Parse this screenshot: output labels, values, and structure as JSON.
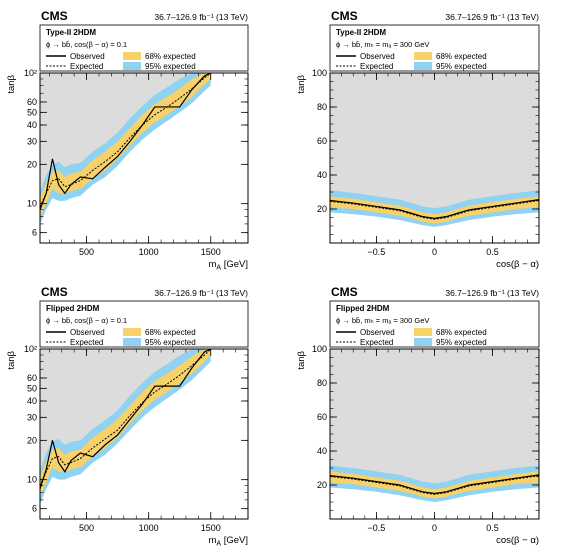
{
  "chart_data": [
    {
      "type": "area",
      "experiment": "CMS",
      "lumi": "36.7–126.9 fb⁻¹ (13 TeV)",
      "model": "Type-II 2HDM",
      "process": "ϕ → bb̄, cos(β − α) = 0.1",
      "xlabel": "mₐ [GeV]",
      "xlabel_main": "m",
      "xlabel_sub": "A",
      "xlabel_unit": " [GeV]",
      "ylabel": "tanβ",
      "xscale": "linear",
      "yscale": "log",
      "xlim": [
        125,
        1800
      ],
      "ylim": [
        5,
        100
      ],
      "xticks": [
        500,
        1000,
        1500
      ],
      "yticks": [
        6,
        10,
        20,
        30,
        40,
        50,
        60,
        100
      ],
      "ytick_labels": [
        "6",
        "10",
        "20",
        "30",
        "40",
        "50",
        "60",
        "10²"
      ],
      "legend": [
        "Observed",
        "Expected",
        "68% expected",
        "95% expected"
      ],
      "x": [
        125,
        175,
        225,
        275,
        325,
        375,
        450,
        550,
        650,
        750,
        850,
        950,
        1050,
        1150,
        1250,
        1350,
        1450,
        1500
      ],
      "observed": [
        9,
        12,
        22,
        14,
        12,
        14,
        16,
        15.5,
        19,
        23,
        30,
        40,
        55,
        55,
        55,
        75,
        95,
        100
      ],
      "expected": [
        9.5,
        12,
        15,
        15.5,
        13.5,
        14,
        15,
        18,
        21,
        25,
        32,
        40,
        48,
        55,
        64,
        76,
        92,
        100
      ],
      "band68": {
        "lo": [
          8,
          10,
          13,
          12,
          12,
          12.5,
          13,
          15.5,
          18,
          22,
          28,
          35,
          42,
          48,
          56,
          66,
          82,
          90
        ],
        "hi": [
          11,
          14.5,
          17.5,
          18,
          16,
          17,
          17.5,
          21.5,
          25,
          30,
          38,
          48,
          58,
          66,
          76,
          90,
          100,
          100
        ]
      },
      "band95": {
        "lo": [
          7,
          9,
          11,
          10.5,
          10.5,
          11,
          11.5,
          14,
          16,
          19.5,
          25,
          31,
          37,
          43,
          50,
          59,
          73,
          80
        ],
        "hi": [
          12.5,
          16.5,
          20,
          21,
          19,
          20,
          20.5,
          25,
          29,
          35,
          45,
          56,
          68,
          78,
          90,
          100,
          100,
          100
        ]
      },
      "xticks_nolabel": false,
      "excluded_fill": "#dcdcdc",
      "band68_color": "#f7d16a",
      "band95_color": "#8fd2f2"
    },
    {
      "type": "area",
      "experiment": "CMS",
      "lumi": "36.7–126.9 fb⁻¹ (13 TeV)",
      "model": "Type-II 2HDM",
      "process": "ϕ → bb̄, mₕ = mₐ = 300 GeV",
      "xlabel": "cos(β − α)",
      "ylabel": "tanβ",
      "xscale": "linear",
      "yscale": "linear",
      "xlim": [
        -0.9,
        0.9
      ],
      "ylim": [
        0,
        100
      ],
      "xticks": [
        -0.5,
        0,
        0.5
      ],
      "yticks": [
        20,
        40,
        60,
        80,
        100
      ],
      "legend": [
        "Observed",
        "Expected",
        "68% expected",
        "95% expected"
      ],
      "x": [
        -0.9,
        -0.7,
        -0.5,
        -0.3,
        -0.2,
        -0.1,
        0,
        0.1,
        0.2,
        0.3,
        0.5,
        0.7,
        0.9
      ],
      "observed": [
        25,
        23.5,
        21.5,
        19.5,
        17.5,
        15.5,
        14.5,
        15.5,
        17.5,
        19.5,
        21.5,
        23.5,
        25.5
      ],
      "expected": [
        24.5,
        23,
        21,
        19,
        17,
        15,
        14,
        15,
        17,
        19,
        21,
        23,
        25
      ],
      "band68": {
        "lo": [
          21,
          20,
          18,
          16,
          14.5,
          12.5,
          11.5,
          12.5,
          14.5,
          16,
          18,
          20,
          21
        ],
        "hi": [
          27.5,
          26,
          24,
          22,
          20,
          18,
          17,
          18,
          20,
          22,
          24,
          26,
          27.5
        ]
      },
      "band95": {
        "lo": [
          18,
          17,
          15.5,
          13.5,
          12,
          10.5,
          9.5,
          10.5,
          12,
          13.5,
          15.5,
          17,
          18
        ],
        "hi": [
          31,
          29.5,
          27.5,
          25.5,
          23.5,
          21.5,
          20.5,
          21.5,
          23.5,
          25.5,
          27.5,
          29.5,
          31
        ]
      },
      "excluded_fill": "#dcdcdc",
      "band68_color": "#f7d16a",
      "band95_color": "#8fd2f2"
    },
    {
      "type": "area",
      "experiment": "CMS",
      "lumi": "36.7–126.9 fb⁻¹ (13 TeV)",
      "model": "Flipped 2HDM",
      "process": "ϕ → bb̄, cos(β − α) = 0.1",
      "xlabel": "mₐ [GeV]",
      "xlabel_main": "m",
      "xlabel_sub": "A",
      "xlabel_unit": " [GeV]",
      "ylabel": "tanβ",
      "xscale": "linear",
      "yscale": "log",
      "xlim": [
        125,
        1800
      ],
      "ylim": [
        5,
        100
      ],
      "xticks": [
        500,
        1000,
        1500
      ],
      "yticks": [
        6,
        10,
        20,
        30,
        40,
        50,
        60,
        100
      ],
      "ytick_labels": [
        "6",
        "10",
        "20",
        "30",
        "40",
        "50",
        "60",
        "10²"
      ],
      "legend": [
        "Observed",
        "Expected",
        "68% expected",
        "95% expected"
      ],
      "x": [
        125,
        175,
        225,
        275,
        325,
        375,
        450,
        550,
        650,
        750,
        850,
        950,
        1050,
        1150,
        1250,
        1350,
        1450,
        1500
      ],
      "observed": [
        8.5,
        12,
        20,
        13.5,
        11.5,
        14,
        16,
        15,
        18.5,
        22,
        29,
        38,
        52,
        52,
        52,
        72,
        95,
        100
      ],
      "expected": [
        9,
        11.5,
        14.5,
        15,
        13,
        13.5,
        14.5,
        17.5,
        20.5,
        24,
        31,
        39,
        47,
        54,
        63,
        75,
        90,
        100
      ],
      "band68": {
        "lo": [
          7.5,
          9.5,
          12.5,
          11.5,
          11.5,
          12,
          12.5,
          15,
          17.5,
          21,
          27,
          34,
          41,
          47,
          55,
          65,
          80,
          90
        ],
        "hi": [
          10.5,
          14,
          17,
          17.5,
          15.5,
          16.5,
          17,
          21,
          24.5,
          29,
          37,
          47,
          57,
          65,
          75,
          88,
          100,
          100
        ]
      },
      "band95": {
        "lo": [
          6.5,
          8.5,
          10.5,
          10,
          10,
          10.5,
          11,
          13.5,
          15.5,
          19,
          24,
          30,
          36,
          42,
          49,
          58,
          72,
          80
        ],
        "hi": [
          12,
          16,
          19.5,
          20.5,
          18.5,
          19.5,
          20,
          24.5,
          28.5,
          34,
          44,
          55,
          67,
          77,
          89,
          100,
          100,
          100
        ]
      },
      "excluded_fill": "#dcdcdc",
      "band68_color": "#f7d16a",
      "band95_color": "#8fd2f2"
    },
    {
      "type": "area",
      "experiment": "CMS",
      "lumi": "36.7–126.9 fb⁻¹ (13 TeV)",
      "model": "Flipped 2HDM",
      "process": "ϕ → bb̄, mₕ = mₐ = 300 GeV",
      "xlabel": "cos(β − α)",
      "ylabel": "tanβ",
      "xscale": "linear",
      "yscale": "linear",
      "xlim": [
        -0.9,
        0.9
      ],
      "ylim": [
        0,
        100
      ],
      "xticks": [
        -0.5,
        0,
        0.5
      ],
      "yticks": [
        20,
        40,
        60,
        80,
        100
      ],
      "legend": [
        "Observed",
        "Expected",
        "68% expected",
        "95% expected"
      ],
      "x": [
        -0.9,
        -0.7,
        -0.5,
        -0.3,
        -0.2,
        -0.1,
        0,
        0.1,
        0.2,
        0.3,
        0.5,
        0.7,
        0.9
      ],
      "observed": [
        25.5,
        24,
        22,
        20,
        18,
        16,
        15,
        16,
        18,
        20,
        22,
        24,
        26
      ],
      "expected": [
        25,
        23.5,
        21.5,
        19.5,
        17.5,
        15.5,
        14.5,
        15.5,
        17.5,
        19.5,
        21.5,
        23.5,
        25.5
      ],
      "band68": {
        "lo": [
          21.5,
          20.5,
          18.5,
          16.5,
          15,
          13,
          12,
          13,
          15,
          16.5,
          18.5,
          20.5,
          21.5
        ],
        "hi": [
          28,
          26.5,
          24.5,
          22.5,
          20.5,
          18.5,
          17.5,
          18.5,
          20.5,
          22.5,
          24.5,
          26.5,
          28
        ]
      },
      "band95": {
        "lo": [
          18.5,
          17.5,
          16,
          14,
          12.5,
          11,
          10,
          11,
          12.5,
          14,
          16,
          17.5,
          18.5
        ],
        "hi": [
          31.5,
          30,
          28,
          26,
          24,
          22,
          21,
          22,
          24,
          26,
          28,
          30,
          31.5
        ]
      },
      "excluded_fill": "#dcdcdc",
      "band68_color": "#f7d16a",
      "band95_color": "#8fd2f2"
    }
  ]
}
